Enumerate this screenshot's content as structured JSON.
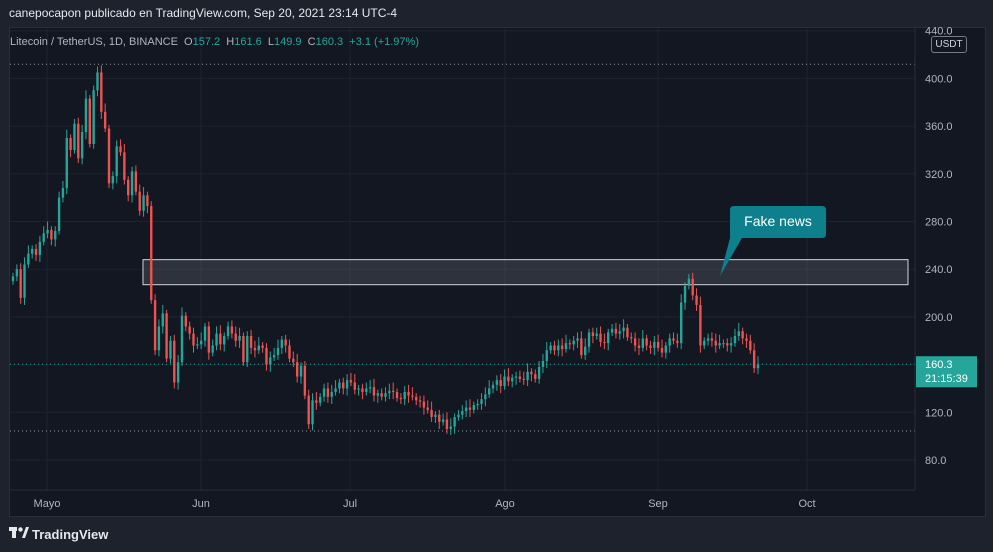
{
  "header": {
    "publish_line": "canepocapon publicado en TradingView.com, Sep 20, 2021 23:14 UTC-4"
  },
  "legend": {
    "symbol": "Litecoin / TetherUS, 1D, BINANCE",
    "open_label": "O",
    "open": "157.2",
    "high_label": "H",
    "high": "161.6",
    "low_label": "L",
    "low": "149.9",
    "close_label": "C",
    "close": "160.3",
    "change": "+3.1 (+1.97%)"
  },
  "price_scale": {
    "currency": "USDT",
    "last_price": "160.3",
    "countdown": "21:15:39"
  },
  "annotation": {
    "text": "Fake news"
  },
  "footer": {
    "brand": "TradingView"
  },
  "colors": {
    "up": "#26a69a",
    "down": "#ef5350",
    "background": "#131722",
    "callout": "#0e7f8c"
  },
  "chart_data": {
    "type": "candlestick",
    "x_tick_labels": [
      "Mayo",
      "Jun",
      "Jul",
      "Ago",
      "Sep",
      "Oct"
    ],
    "y_tick_labels": [
      "80.0",
      "120.0",
      "160.0",
      "200.0",
      "240.0",
      "280.0",
      "320.0",
      "360.0",
      "400.0",
      "440.0"
    ],
    "ylim": [
      70,
      445
    ],
    "horizontal_levels": [
      411.9,
      104.3
    ],
    "last_price_line": 160.3,
    "zone": {
      "low": 227.0,
      "high": 248.0
    },
    "ohlc_closes": [
      234,
      240,
      216,
      244,
      253,
      257,
      252,
      263,
      270,
      273,
      265,
      272,
      300,
      308,
      350,
      340,
      362,
      333,
      355,
      383,
      345,
      390,
      405,
      372,
      358,
      312,
      318,
      343,
      338,
      315,
      302,
      322,
      305,
      289,
      302,
      293,
      214,
      172,
      192,
      203,
      165,
      180,
      145,
      162,
      201,
      192,
      186,
      176,
      177,
      180,
      192,
      170,
      176,
      186,
      177,
      184,
      192,
      186,
      180,
      184,
      162,
      184,
      174,
      172,
      176,
      174,
      160,
      166,
      168,
      174,
      181,
      176,
      165,
      162,
      150,
      159,
      134,
      110,
      130,
      128,
      133,
      140,
      133,
      137,
      140,
      145,
      140,
      147,
      145,
      139,
      140,
      137,
      140,
      141,
      134,
      136,
      133,
      136,
      138,
      137,
      132,
      131,
      137,
      134,
      133,
      130,
      129,
      124,
      122,
      116,
      118,
      112,
      114,
      106,
      108,
      116,
      118,
      121,
      124,
      122,
      126,
      127,
      131,
      135,
      140,
      143,
      147,
      142,
      150,
      146,
      149,
      150,
      148,
      147,
      154,
      152,
      148,
      158,
      163,
      172,
      176,
      172,
      176,
      173,
      178,
      177,
      180,
      182,
      168,
      175,
      187,
      184,
      186,
      179,
      178,
      187,
      190,
      186,
      188,
      191,
      183,
      182,
      176,
      174,
      182,
      176,
      174,
      179,
      174,
      170,
      176,
      182,
      180,
      178,
      212,
      226,
      232,
      218,
      210,
      176,
      180,
      182,
      180,
      176,
      178,
      178,
      176,
      178,
      184,
      188,
      182,
      180,
      172,
      157,
      160
    ]
  }
}
